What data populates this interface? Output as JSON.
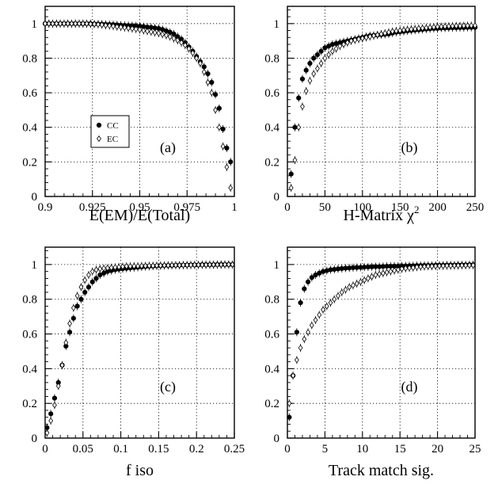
{
  "chart_data": [
    {
      "type": "scatter",
      "panel_label": "(a)",
      "xlabel": "E(EM)/E(Total)",
      "ylabel": "",
      "xlim": [
        0.9,
        1.0
      ],
      "ylim": [
        0,
        1.1
      ],
      "xticks": [
        "0.9",
        "0.925",
        "0.95",
        "0.975",
        "1"
      ],
      "yticks": [
        "0",
        "0.2",
        "0.4",
        "0.6",
        "0.8",
        "1"
      ],
      "grid": true,
      "legend": {
        "placement": "center-left",
        "entries": [
          "CC",
          "EC"
        ]
      },
      "series": [
        {
          "name": "CC",
          "marker": "filled",
          "x": [
            0.9,
            0.902,
            0.904,
            0.906,
            0.908,
            0.91,
            0.912,
            0.914,
            0.916,
            0.918,
            0.92,
            0.922,
            0.924,
            0.926,
            0.928,
            0.93,
            0.932,
            0.934,
            0.936,
            0.938,
            0.94,
            0.942,
            0.944,
            0.946,
            0.948,
            0.95,
            0.952,
            0.954,
            0.956,
            0.958,
            0.96,
            0.962,
            0.964,
            0.966,
            0.968,
            0.97,
            0.972,
            0.974,
            0.976,
            0.978,
            0.98,
            0.982,
            0.984,
            0.986,
            0.988,
            0.99,
            0.992,
            0.994,
            0.996,
            0.998
          ],
          "values": [
            1,
            1,
            1,
            1,
            1,
            1,
            1,
            1,
            1,
            1,
            1,
            1,
            1,
            0.998,
            0.998,
            0.997,
            0.996,
            0.995,
            0.994,
            0.993,
            0.991,
            0.99,
            0.989,
            0.988,
            0.987,
            0.985,
            0.983,
            0.98,
            0.978,
            0.975,
            0.972,
            0.966,
            0.958,
            0.95,
            0.94,
            0.925,
            0.91,
            0.89,
            0.865,
            0.84,
            0.81,
            0.78,
            0.75,
            0.71,
            0.66,
            0.59,
            0.51,
            0.39,
            0.28,
            0.2
          ]
        },
        {
          "name": "EC",
          "marker": "open",
          "x": [
            0.9,
            0.902,
            0.904,
            0.906,
            0.908,
            0.91,
            0.912,
            0.914,
            0.916,
            0.918,
            0.92,
            0.922,
            0.924,
            0.926,
            0.928,
            0.93,
            0.932,
            0.934,
            0.936,
            0.938,
            0.94,
            0.942,
            0.944,
            0.946,
            0.948,
            0.95,
            0.952,
            0.954,
            0.956,
            0.958,
            0.96,
            0.962,
            0.964,
            0.966,
            0.968,
            0.97,
            0.972,
            0.974,
            0.976,
            0.978,
            0.98,
            0.982,
            0.984,
            0.986,
            0.988,
            0.99,
            0.992,
            0.994,
            0.996,
            0.998
          ],
          "values": [
            1,
            1,
            1,
            1,
            1,
            1,
            1,
            1,
            1,
            1,
            1,
            1,
            0.998,
            0.997,
            0.995,
            0.993,
            0.99,
            0.988,
            0.985,
            0.982,
            0.98,
            0.977,
            0.974,
            0.971,
            0.968,
            0.965,
            0.96,
            0.956,
            0.952,
            0.948,
            0.944,
            0.938,
            0.932,
            0.924,
            0.914,
            0.903,
            0.89,
            0.875,
            0.855,
            0.83,
            0.8,
            0.77,
            0.72,
            0.66,
            0.6,
            0.5,
            0.4,
            0.29,
            0.17,
            0.05
          ]
        }
      ]
    },
    {
      "type": "scatter",
      "panel_label": "(b)",
      "xlabel": "H-Matrix χ",
      "xlabel_sup": "2",
      "ylabel": "",
      "xlim": [
        0,
        250
      ],
      "ylim": [
        0,
        1.1
      ],
      "xticks": [
        "0",
        "50",
        "100",
        "150",
        "200",
        "250"
      ],
      "yticks": [
        "0",
        "0.2",
        "0.4",
        "0.6",
        "0.8",
        "1"
      ],
      "grid": true,
      "series": [
        {
          "name": "CC",
          "marker": "filled",
          "x": [
            5,
            10,
            15,
            20,
            25,
            30,
            35,
            40,
            45,
            50,
            55,
            60,
            65,
            70,
            75,
            80,
            85,
            90,
            95,
            100,
            105,
            110,
            115,
            120,
            125,
            130,
            135,
            140,
            145,
            150,
            155,
            160,
            165,
            170,
            175,
            180,
            185,
            190,
            195,
            200,
            205,
            210,
            215,
            220,
            225,
            230,
            235,
            240,
            245,
            250
          ],
          "values": [
            0.13,
            0.4,
            0.57,
            0.68,
            0.73,
            0.77,
            0.8,
            0.82,
            0.84,
            0.86,
            0.87,
            0.88,
            0.885,
            0.89,
            0.895,
            0.9,
            0.905,
            0.91,
            0.915,
            0.92,
            0.925,
            0.93,
            0.932,
            0.934,
            0.936,
            0.938,
            0.94,
            0.945,
            0.95,
            0.952,
            0.955,
            0.958,
            0.96,
            0.962,
            0.964,
            0.966,
            0.968,
            0.97,
            0.972,
            0.972,
            0.974,
            0.974,
            0.975,
            0.976,
            0.976,
            0.977,
            0.977,
            0.978,
            0.978,
            0.978
          ]
        },
        {
          "name": "EC",
          "marker": "open",
          "x": [
            5,
            10,
            15,
            20,
            25,
            30,
            35,
            40,
            45,
            50,
            55,
            60,
            65,
            70,
            75,
            80,
            85,
            90,
            95,
            100,
            105,
            110,
            115,
            120,
            125,
            130,
            135,
            140,
            145,
            150,
            155,
            160,
            165,
            170,
            175,
            180,
            185,
            190,
            195,
            200,
            205,
            210,
            215,
            220,
            225,
            230,
            235,
            240,
            245,
            250
          ],
          "values": [
            0.05,
            0.21,
            0.4,
            0.52,
            0.61,
            0.67,
            0.71,
            0.74,
            0.77,
            0.8,
            0.82,
            0.84,
            0.855,
            0.87,
            0.88,
            0.89,
            0.9,
            0.905,
            0.91,
            0.915,
            0.92,
            0.925,
            0.93,
            0.935,
            0.94,
            0.945,
            0.95,
            0.955,
            0.958,
            0.96,
            0.963,
            0.966,
            0.968,
            0.97,
            0.972,
            0.974,
            0.976,
            0.978,
            0.98,
            0.982,
            0.983,
            0.984,
            0.985,
            0.986,
            0.987,
            0.987,
            0.988,
            0.988,
            0.989,
            0.989
          ]
        }
      ]
    },
    {
      "type": "scatter",
      "panel_label": "(c)",
      "xlabel": "f iso",
      "ylabel": "",
      "xlim": [
        0,
        0.25
      ],
      "ylim": [
        0,
        1.1
      ],
      "xticks": [
        "0",
        "0.05",
        "0.1",
        "0.15",
        "0.2",
        "0.25"
      ],
      "yticks": [
        "0",
        "0.2",
        "0.4",
        "0.6",
        "0.8",
        "1"
      ],
      "grid": true,
      "series": [
        {
          "name": "CC",
          "marker": "filled",
          "x": [
            0.0025,
            0.0075,
            0.0125,
            0.0175,
            0.0225,
            0.0275,
            0.0325,
            0.0375,
            0.0425,
            0.0475,
            0.0525,
            0.0575,
            0.0625,
            0.0675,
            0.0725,
            0.0775,
            0.0825,
            0.0875,
            0.0925,
            0.0975,
            0.1025,
            0.1075,
            0.1125,
            0.1175,
            0.1225,
            0.1275,
            0.1325,
            0.1375,
            0.1425,
            0.1475,
            0.1525,
            0.1575,
            0.1625,
            0.1675,
            0.1725,
            0.1775,
            0.1825,
            0.1875,
            0.1925,
            0.1975,
            0.2025,
            0.2075,
            0.2125,
            0.2175,
            0.2225,
            0.2275,
            0.2325,
            0.2375,
            0.2425,
            0.2475
          ],
          "values": [
            0.06,
            0.14,
            0.23,
            0.32,
            0.42,
            0.53,
            0.61,
            0.69,
            0.76,
            0.8,
            0.84,
            0.87,
            0.9,
            0.92,
            0.94,
            0.95,
            0.96,
            0.965,
            0.97,
            0.973,
            0.976,
            0.978,
            0.98,
            0.982,
            0.984,
            0.986,
            0.988,
            0.99,
            0.991,
            0.992,
            0.993,
            0.994,
            0.995,
            0.995,
            0.996,
            0.996,
            0.997,
            0.997,
            0.998,
            0.998,
            0.998,
            0.999,
            0.999,
            0.999,
            0.999,
            1,
            1,
            1,
            1,
            1
          ]
        },
        {
          "name": "EC",
          "marker": "open",
          "x": [
            0.0025,
            0.0075,
            0.0125,
            0.0175,
            0.0225,
            0.0275,
            0.0325,
            0.0375,
            0.0425,
            0.0475,
            0.0525,
            0.0575,
            0.0625,
            0.0675,
            0.0725,
            0.0775,
            0.0825,
            0.0875,
            0.0925,
            0.0975,
            0.1025,
            0.1075,
            0.1125,
            0.1175,
            0.1225,
            0.1275,
            0.1325,
            0.1375,
            0.1425,
            0.1475,
            0.1525,
            0.1575,
            0.1625,
            0.1675,
            0.1725,
            0.1775,
            0.1825,
            0.1875,
            0.1925,
            0.1975,
            0.2025,
            0.2075,
            0.2125,
            0.2175,
            0.2225,
            0.2275,
            0.2325,
            0.2375,
            0.2425,
            0.2475
          ],
          "values": [
            0.03,
            0.1,
            0.19,
            0.3,
            0.42,
            0.55,
            0.66,
            0.75,
            0.82,
            0.87,
            0.91,
            0.94,
            0.96,
            0.97,
            0.975,
            0.978,
            0.98,
            0.982,
            0.984,
            0.986,
            0.988,
            0.99,
            0.99,
            0.991,
            0.991,
            0.992,
            0.992,
            0.993,
            0.993,
            0.994,
            0.994,
            0.995,
            0.995,
            0.996,
            0.996,
            0.996,
            0.997,
            0.997,
            0.997,
            0.998,
            0.998,
            0.998,
            0.998,
            0.999,
            0.999,
            0.999,
            0.999,
            1,
            1,
            1
          ]
        }
      ]
    },
    {
      "type": "scatter",
      "panel_label": "(d)",
      "xlabel": "Track match sig.",
      "ylabel": "",
      "xlim": [
        0,
        25
      ],
      "ylim": [
        0,
        1.1
      ],
      "xticks": [
        "0",
        "5",
        "10",
        "15",
        "20",
        "25"
      ],
      "yticks": [
        "0",
        "0.2",
        "0.4",
        "0.6",
        "0.8",
        "1"
      ],
      "grid": true,
      "series": [
        {
          "name": "CC",
          "marker": "filled",
          "x": [
            0.25,
            0.75,
            1.25,
            1.75,
            2.25,
            2.75,
            3.25,
            3.75,
            4.25,
            4.75,
            5.25,
            5.75,
            6.25,
            6.75,
            7.25,
            7.75,
            8.25,
            8.75,
            9.25,
            9.75,
            10.25,
            10.75,
            11.25,
            11.75,
            12.25,
            12.75,
            13.25,
            13.75,
            14.25,
            14.75,
            15.25,
            15.75,
            16.25,
            16.75,
            17.25,
            17.75,
            18.25,
            18.75,
            19.25,
            19.75,
            20.25,
            20.75,
            21.25,
            21.75,
            22.25,
            22.75,
            23.25,
            23.75,
            24.25,
            24.75
          ],
          "values": [
            0.12,
            0.36,
            0.61,
            0.78,
            0.86,
            0.9,
            0.925,
            0.94,
            0.95,
            0.96,
            0.965,
            0.97,
            0.972,
            0.975,
            0.977,
            0.979,
            0.98,
            0.982,
            0.983,
            0.984,
            0.985,
            0.986,
            0.987,
            0.988,
            0.988,
            0.989,
            0.99,
            0.99,
            0.991,
            0.991,
            0.992,
            0.992,
            0.993,
            0.993,
            0.994,
            0.994,
            0.995,
            0.995,
            0.995,
            0.996,
            0.996,
            0.996,
            0.997,
            0.997,
            0.997,
            0.998,
            0.998,
            0.998,
            0.999,
            0.999
          ]
        },
        {
          "name": "EC",
          "marker": "open",
          "x": [
            0.25,
            0.75,
            1.25,
            1.75,
            2.25,
            2.75,
            3.25,
            3.75,
            4.25,
            4.75,
            5.25,
            5.75,
            6.25,
            6.75,
            7.25,
            7.75,
            8.25,
            8.75,
            9.25,
            9.75,
            10.25,
            10.75,
            11.25,
            11.75,
            12.25,
            12.75,
            13.25,
            13.75,
            14.25,
            14.75,
            15.25,
            15.75,
            16.25,
            16.75,
            17.25,
            17.75,
            18.25,
            18.75,
            19.25,
            19.75,
            20.25,
            20.75,
            21.25,
            21.75,
            22.25,
            22.75,
            23.25,
            23.75,
            24.25,
            24.75
          ],
          "values": [
            0.2,
            0.36,
            0.45,
            0.52,
            0.57,
            0.61,
            0.65,
            0.68,
            0.71,
            0.74,
            0.76,
            0.78,
            0.8,
            0.82,
            0.84,
            0.855,
            0.87,
            0.88,
            0.89,
            0.9,
            0.91,
            0.92,
            0.93,
            0.94,
            0.945,
            0.95,
            0.955,
            0.96,
            0.965,
            0.97,
            0.975,
            0.978,
            0.98,
            0.982,
            0.985,
            0.987,
            0.988,
            0.99,
            0.99,
            0.991,
            0.992,
            0.992,
            0.993,
            0.993,
            0.994,
            0.994,
            0.995,
            0.995,
            0.996,
            0.996
          ]
        }
      ]
    }
  ]
}
